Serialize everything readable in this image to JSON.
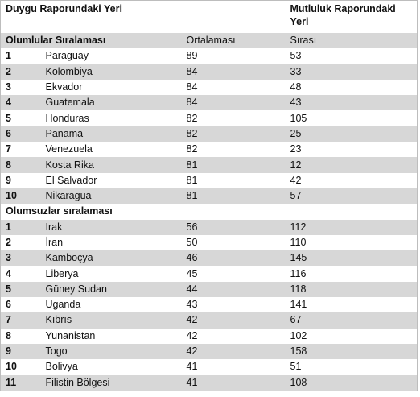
{
  "header": {
    "duygu": "Duygu Raporundaki Yeri",
    "mutluluk": "Mutluluk Raporundaki Yeri"
  },
  "section_positive": {
    "title": "Olumlular Sıralaması",
    "col_score": "Ortalaması",
    "col_rank": "Sırası",
    "rows": [
      {
        "n": "1",
        "country": "Paraguay",
        "score": "89",
        "rank": "53"
      },
      {
        "n": "2",
        "country": "Kolombiya",
        "score": "84",
        "rank": "33"
      },
      {
        "n": "3",
        "country": "Ekvador",
        "score": "84",
        "rank": "48"
      },
      {
        "n": "4",
        "country": "Guatemala",
        "score": "84",
        "rank": "43"
      },
      {
        "n": "5",
        "country": "Honduras",
        "score": "82",
        "rank": "105"
      },
      {
        "n": "6",
        "country": "Panama",
        "score": "82",
        "rank": "25"
      },
      {
        "n": "7",
        "country": "Venezuela",
        "score": "82",
        "rank": "23"
      },
      {
        "n": "8",
        "country": "Kosta Rika",
        "score": "81",
        "rank": "12"
      },
      {
        "n": "9",
        "country": "El Salvador",
        "score": "81",
        "rank": "42"
      },
      {
        "n": "10",
        "country": "Nikaragua",
        "score": "81",
        "rank": "57"
      }
    ]
  },
  "section_negative": {
    "title": "Olumsuzlar sıralaması",
    "rows": [
      {
        "n": "1",
        "country": "Irak",
        "score": "56",
        "rank": "112"
      },
      {
        "n": "2",
        "country": "İran",
        "score": "50",
        "rank": "110"
      },
      {
        "n": "3",
        "country": "Kamboçya",
        "score": "46",
        "rank": "145"
      },
      {
        "n": "4",
        "country": "Liberya",
        "score": "45",
        "rank": "116"
      },
      {
        "n": "5",
        "country": "Güney Sudan",
        "score": "44",
        "rank": "118"
      },
      {
        "n": "6",
        "country": "Uganda",
        "score": "43",
        "rank": "141"
      },
      {
        "n": "7",
        "country": "Kıbrıs",
        "score": "42",
        "rank": "67"
      },
      {
        "n": "8",
        "country": "Yunanistan",
        "score": "42",
        "rank": "102"
      },
      {
        "n": "9",
        "country": "Togo",
        "score": "42",
        "rank": "158"
      },
      {
        "n": "10",
        "country": "Bolivya",
        "score": "41",
        "rank": "51"
      },
      {
        "n": "11",
        "country": "Filistin Bölgesi",
        "score": "41",
        "rank": "108"
      }
    ]
  }
}
